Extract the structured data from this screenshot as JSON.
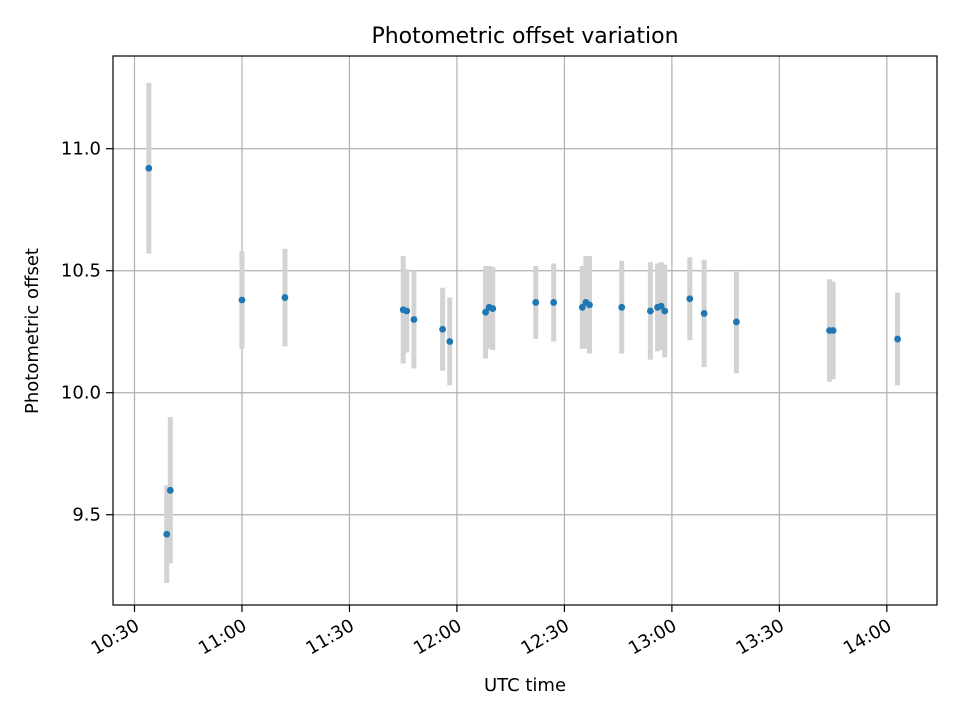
{
  "chart_data": {
    "type": "scatter",
    "title": "Photometric offset variation",
    "xlabel": "UTC time",
    "ylabel": "Photometric offset",
    "xlim": [
      "10:24",
      "14:14"
    ],
    "ylim": [
      9.13,
      11.38
    ],
    "x_ticks": [
      "10:30",
      "11:00",
      "11:30",
      "12:00",
      "12:30",
      "13:00",
      "13:30",
      "14:00"
    ],
    "y_ticks": [
      "9.5",
      "10.0",
      "10.5",
      "11.0"
    ],
    "grid": true,
    "colors": {
      "points": "#1f77b4",
      "errorbars": "#d3d3d3",
      "grid": "#b0b0b0"
    },
    "series": [
      {
        "points": [
          {
            "x": "10:34",
            "y": 10.92,
            "err": 0.35
          },
          {
            "x": "10:39",
            "y": 9.42,
            "err": 0.2
          },
          {
            "x": "10:40",
            "y": 9.6,
            "err": 0.3
          },
          {
            "x": "11:00",
            "y": 10.38,
            "err": 0.2
          },
          {
            "x": "11:12",
            "y": 10.39,
            "err": 0.2
          },
          {
            "x": "11:45",
            "y": 10.34,
            "err": 0.22
          },
          {
            "x": "11:46",
            "y": 10.335,
            "err": 0.17
          },
          {
            "x": "11:48",
            "y": 10.3,
            "err": 0.2
          },
          {
            "x": "11:56",
            "y": 10.26,
            "err": 0.17
          },
          {
            "x": "11:58",
            "y": 10.21,
            "err": 0.18
          },
          {
            "x": "12:08",
            "y": 10.33,
            "err": 0.19
          },
          {
            "x": "12:09",
            "y": 10.35,
            "err": 0.17
          },
          {
            "x": "12:10",
            "y": 10.345,
            "err": 0.17
          },
          {
            "x": "12:22",
            "y": 10.37,
            "err": 0.15
          },
          {
            "x": "12:27",
            "y": 10.37,
            "err": 0.16
          },
          {
            "x": "12:35",
            "y": 10.35,
            "err": 0.17
          },
          {
            "x": "12:36",
            "y": 10.37,
            "err": 0.19
          },
          {
            "x": "12:37",
            "y": 10.36,
            "err": 0.2
          },
          {
            "x": "12:46",
            "y": 10.35,
            "err": 0.19
          },
          {
            "x": "12:54",
            "y": 10.335,
            "err": 0.2
          },
          {
            "x": "12:56",
            "y": 10.35,
            "err": 0.18
          },
          {
            "x": "12:57",
            "y": 10.355,
            "err": 0.18
          },
          {
            "x": "12:58",
            "y": 10.335,
            "err": 0.19
          },
          {
            "x": "13:05",
            "y": 10.385,
            "err": 0.17
          },
          {
            "x": "13:09",
            "y": 10.325,
            "err": 0.22
          },
          {
            "x": "13:18",
            "y": 10.29,
            "err": 0.21
          },
          {
            "x": "13:44",
            "y": 10.255,
            "err": 0.21
          },
          {
            "x": "13:45",
            "y": 10.255,
            "err": 0.2
          },
          {
            "x": "14:03",
            "y": 10.22,
            "err": 0.19
          }
        ]
      }
    ]
  }
}
